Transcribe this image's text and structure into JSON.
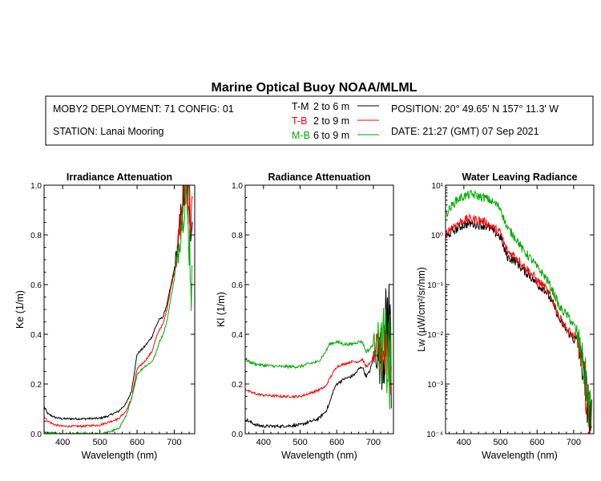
{
  "header": {
    "title": "Marine Optical Buoy NOAA/MLML",
    "deployment": "MOBY2 DEPLOYMENT: 71 CONFIG: 01",
    "station": "STATION: Lanai Mooring",
    "position": "POSITION: 20° 49.65' N   157° 11.3' W",
    "date": "DATE: 21:27 (GMT) 07 Sep 2021",
    "legend": [
      {
        "code": "T-M",
        "range": "2 to 6  m",
        "color": "#000000"
      },
      {
        "code": "T-B",
        "range": "2 to 9  m",
        "color": "#ff0000"
      },
      {
        "code": "M-B",
        "range": "6 to 9  m",
        "color": "#00aa00"
      }
    ]
  },
  "chart_data": [
    {
      "type": "line",
      "title": "Irradiance Attenuation",
      "xlabel": "Wavelength (nm)",
      "ylabel": "Ke  (1/m)",
      "xlim": [
        350,
        755
      ],
      "ylim": [
        0,
        1.0
      ],
      "yscale": "linear",
      "xticks": [
        400,
        500,
        600,
        700
      ],
      "yticks": [
        "0.0",
        "0.2",
        "0.4",
        "0.6",
        "0.8",
        "1.0"
      ],
      "series": [
        {
          "name": "T-M",
          "color": "#000000",
          "noise": 0.004,
          "x": [
            350,
            360,
            380,
            400,
            450,
            500,
            520,
            550,
            570,
            585,
            595,
            600,
            620,
            640,
            650,
            660,
            670,
            680,
            690,
            700,
            710,
            720,
            730,
            740,
            750
          ],
          "y": [
            0.11,
            0.08,
            0.065,
            0.06,
            0.06,
            0.062,
            0.07,
            0.09,
            0.12,
            0.17,
            0.27,
            0.32,
            0.35,
            0.39,
            0.43,
            0.46,
            0.47,
            0.52,
            0.59,
            0.66,
            0.76,
            0.9,
            1.0,
            0.95,
            0.85
          ]
        },
        {
          "name": "T-B",
          "color": "#ff0000",
          "noise": 0.004,
          "x": [
            350,
            360,
            380,
            400,
            450,
            500,
            520,
            550,
            570,
            585,
            595,
            600,
            620,
            640,
            650,
            660,
            670,
            680,
            690,
            700,
            710,
            720,
            730,
            740,
            750
          ],
          "y": [
            0.07,
            0.05,
            0.035,
            0.03,
            0.03,
            0.035,
            0.045,
            0.06,
            0.09,
            0.14,
            0.22,
            0.26,
            0.29,
            0.33,
            0.38,
            0.42,
            0.44,
            0.5,
            0.58,
            0.65,
            0.75,
            0.88,
            1.0,
            0.96,
            0.82
          ]
        },
        {
          "name": "M-B",
          "color": "#00aa00",
          "noise": 0.004,
          "x": [
            350,
            380,
            400,
            450,
            500,
            520,
            550,
            570,
            585,
            595,
            600,
            620,
            640,
            650,
            660,
            670,
            680,
            690,
            700,
            710,
            720,
            730,
            740,
            750
          ],
          "y": [
            0.005,
            0.002,
            0.0,
            0.0,
            0.0,
            0.005,
            0.02,
            0.07,
            0.14,
            0.2,
            0.24,
            0.27,
            0.29,
            0.32,
            0.37,
            0.4,
            0.45,
            0.54,
            0.62,
            0.72,
            0.86,
            0.98,
            0.8,
            0.5
          ]
        }
      ]
    },
    {
      "type": "line",
      "title": "Radiance Attenuation",
      "xlabel": "Wavelength (nm)",
      "ylabel": "Kl  (1/m)",
      "xlim": [
        350,
        755
      ],
      "ylim": [
        0,
        1.0
      ],
      "yscale": "linear",
      "xticks": [
        400,
        500,
        600,
        700
      ],
      "yticks": [
        "0.0",
        "0.2",
        "0.4",
        "0.6",
        "0.8",
        "1.0"
      ],
      "series": [
        {
          "name": "T-M",
          "color": "#000000",
          "noise": 0.006,
          "x": [
            350,
            360,
            380,
            400,
            450,
            500,
            520,
            550,
            570,
            580,
            590,
            600,
            620,
            640,
            650,
            660,
            670,
            680,
            690,
            700,
            710,
            720,
            730,
            740,
            750
          ],
          "y": [
            0.06,
            0.05,
            0.035,
            0.03,
            0.03,
            0.035,
            0.045,
            0.06,
            0.09,
            0.12,
            0.17,
            0.2,
            0.22,
            0.23,
            0.24,
            0.26,
            0.27,
            0.23,
            0.25,
            0.3,
            0.33,
            0.3,
            0.35,
            0.5,
            0.3
          ]
        },
        {
          "name": "T-B",
          "color": "#ff0000",
          "noise": 0.005,
          "x": [
            350,
            360,
            380,
            400,
            450,
            500,
            520,
            550,
            570,
            580,
            600,
            620,
            640,
            660,
            670,
            680,
            690,
            700,
            710,
            720,
            730,
            740,
            750
          ],
          "y": [
            0.18,
            0.17,
            0.16,
            0.155,
            0.15,
            0.15,
            0.16,
            0.175,
            0.19,
            0.22,
            0.27,
            0.28,
            0.29,
            0.29,
            0.3,
            0.27,
            0.28,
            0.31,
            0.34,
            0.33,
            0.35,
            0.38,
            0.3
          ]
        },
        {
          "name": "M-B",
          "color": "#00aa00",
          "noise": 0.006,
          "x": [
            350,
            360,
            380,
            400,
            450,
            500,
            520,
            550,
            570,
            580,
            600,
            620,
            640,
            660,
            670,
            680,
            690,
            700,
            710,
            720,
            730,
            740,
            750
          ],
          "y": [
            0.3,
            0.29,
            0.28,
            0.275,
            0.27,
            0.27,
            0.28,
            0.29,
            0.33,
            0.36,
            0.37,
            0.36,
            0.36,
            0.37,
            0.37,
            0.33,
            0.34,
            0.36,
            0.37,
            0.34,
            0.35,
            0.3,
            0.2
          ]
        }
      ]
    },
    {
      "type": "line",
      "title": "Water Leaving Radiance",
      "xlabel": "Wavelength (nm)",
      "ylabel": "Lw  (µW/cm²/sr/nm)",
      "xlim": [
        350,
        755
      ],
      "ylim": [
        0.0001,
        10
      ],
      "yscale": "log",
      "xticks": [
        400,
        500,
        600,
        700
      ],
      "yticks": [
        "10⁻⁴",
        "10⁻³",
        "10⁻²",
        "10⁻¹",
        "10⁰",
        "10¹"
      ],
      "series": [
        {
          "name": "T-M",
          "color": "#000000",
          "noise": 0.03,
          "x": [
            350,
            370,
            380,
            400,
            420,
            440,
            460,
            480,
            500,
            510,
            520,
            540,
            560,
            580,
            600,
            620,
            640,
            660,
            680,
            700,
            710,
            720,
            730,
            740,
            750
          ],
          "y": [
            0.9,
            1.2,
            1.3,
            1.6,
            1.7,
            1.6,
            1.5,
            1.2,
            0.9,
            0.5,
            0.35,
            0.3,
            0.2,
            0.15,
            0.1,
            0.08,
            0.045,
            0.02,
            0.012,
            0.008,
            0.007,
            0.003,
            0.001,
            0.0003,
            0.0001
          ]
        },
        {
          "name": "T-B",
          "color": "#ff0000",
          "noise": 0.03,
          "x": [
            350,
            370,
            380,
            400,
            420,
            440,
            460,
            480,
            500,
            510,
            520,
            540,
            560,
            580,
            600,
            620,
            640,
            660,
            680,
            700,
            710,
            720,
            730,
            740,
            750
          ],
          "y": [
            1.0,
            1.5,
            1.6,
            2.0,
            2.1,
            2.0,
            1.8,
            1.4,
            1.1,
            0.65,
            0.45,
            0.38,
            0.25,
            0.18,
            0.12,
            0.09,
            0.05,
            0.022,
            0.013,
            0.009,
            0.007,
            0.003,
            0.001,
            0.0003,
            0.0001
          ]
        },
        {
          "name": "M-B",
          "color": "#00aa00",
          "noise": 0.03,
          "x": [
            350,
            370,
            380,
            400,
            420,
            440,
            460,
            480,
            500,
            510,
            520,
            540,
            560,
            580,
            600,
            620,
            640,
            660,
            680,
            700,
            710,
            720,
            730,
            740,
            750
          ],
          "y": [
            2.5,
            4.0,
            5.0,
            6.0,
            6.5,
            6.0,
            5.5,
            4.5,
            3.5,
            2.0,
            1.3,
            0.9,
            0.5,
            0.35,
            0.22,
            0.15,
            0.08,
            0.035,
            0.025,
            0.015,
            0.01,
            0.004,
            0.0015,
            0.0004,
            0.0001
          ]
        }
      ]
    }
  ]
}
